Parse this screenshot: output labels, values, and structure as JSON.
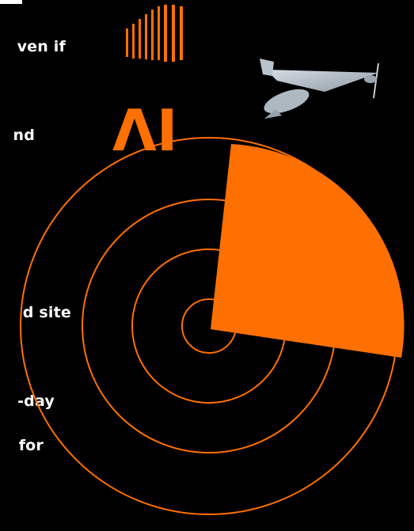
{
  "text_lines": [
    "ven if",
    "nd",
    "d site",
    "-day",
    "for"
  ],
  "logo": {
    "text": "ΛI",
    "color": "#ff7000"
  },
  "colors": {
    "background": "#000000",
    "accent": "#ff7000",
    "text": "#ffffff"
  },
  "icons": {
    "signal": "signal-bars-icon",
    "drone": "drone-image",
    "radar": "radar-graphic"
  }
}
